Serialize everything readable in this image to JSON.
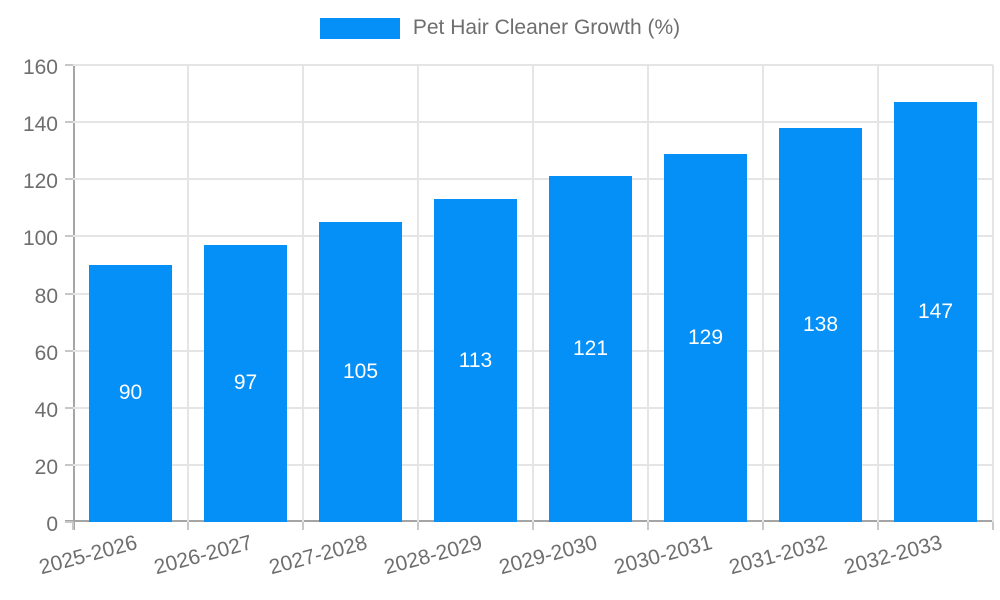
{
  "chart_data": {
    "type": "bar",
    "title": "Pet Hair Cleaner Growth (%)",
    "categories": [
      "2025-2026",
      "2026-2027",
      "2027-2028",
      "2028-2029",
      "2029-2030",
      "2030-2031",
      "2031-2032",
      "2032-2033"
    ],
    "values": [
      90,
      97,
      105,
      113,
      121,
      129,
      138,
      147
    ],
    "xlabel": "",
    "ylabel": "",
    "ylim": [
      0,
      160
    ],
    "yticks": [
      0,
      20,
      40,
      60,
      80,
      100,
      120,
      140,
      160
    ],
    "grid": true,
    "legend_position": "top",
    "value_labels": "inside-center",
    "colors": {
      "bar": "#0590f8",
      "grid": "#e5e5e5",
      "axis": "#a5a5a5",
      "tick": "#c8c8c8",
      "text": "#6e6e6e",
      "value_label": "#ffffff",
      "background": "#ffffff"
    }
  }
}
